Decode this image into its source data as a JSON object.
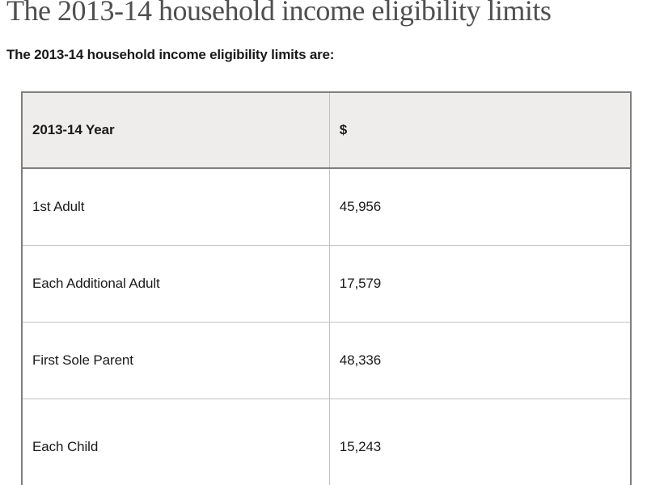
{
  "page": {
    "title": "The 2013-14 household income eligibility limits",
    "intro": "The 2013-14 household income eligibility limits are:"
  },
  "table": {
    "headers": {
      "label": "2013-14 Year",
      "value": "$"
    },
    "rows": [
      {
        "label": "1st Adult",
        "value": "45,956"
      },
      {
        "label": "Each Additional Adult",
        "value": "17,579"
      },
      {
        "label": "First Sole Parent",
        "value": "48,336"
      },
      {
        "label": "Each Child",
        "value": "15,243"
      }
    ]
  },
  "colors": {
    "heading_color": "#4f4f4f",
    "text_color": "#1a1a1a",
    "header_bg": "#eeedeb",
    "outer_border": "#7f7f7f",
    "inner_border": "#c2c2c2"
  }
}
